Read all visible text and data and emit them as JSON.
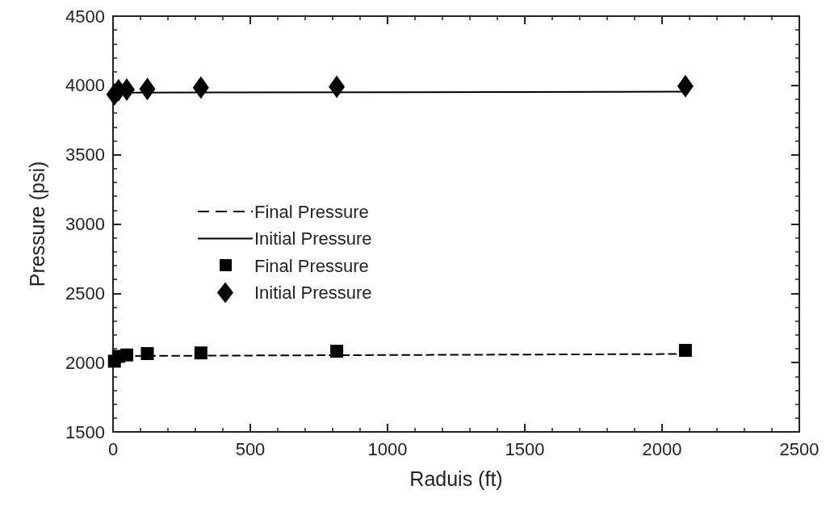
{
  "chart_data": {
    "type": "scatter",
    "xlabel": "Raduis (ft)",
    "ylabel": "Pressure (psi)",
    "xlim": [
      0,
      2500
    ],
    "xticks": [
      0,
      500,
      1000,
      1500,
      2000,
      2500
    ],
    "ylim": [
      1500,
      4500
    ],
    "yticks": [
      1500,
      2000,
      2500,
      3000,
      3500,
      4000,
      4500
    ],
    "grid": false,
    "legend": "left",
    "series": [
      {
        "name": "Final Pressure",
        "type": "line",
        "color": "#000000",
        "line_style": "dashed",
        "marker": "none",
        "x": [
          0,
          20,
          50,
          2085
        ],
        "values": [
          2010,
          2040,
          2048,
          2062
        ]
      },
      {
        "name": "Initial Pressure",
        "type": "line",
        "color": "#000000",
        "line_style": "solid",
        "marker": "none",
        "x": [
          0,
          50,
          2085
        ],
        "values": [
          3940,
          3948,
          3955
        ]
      },
      {
        "name": "Final Pressure",
        "color": "#000000",
        "marker": "square",
        "x": [
          5,
          20,
          50,
          125,
          320,
          815,
          2085
        ],
        "values": [
          2010,
          2045,
          2055,
          2065,
          2070,
          2082,
          2088
        ]
      },
      {
        "name": "Initial Pressure",
        "color": "#000000",
        "marker": "diamond",
        "x": [
          5,
          20,
          50,
          125,
          320,
          815,
          2085
        ],
        "values": [
          3935,
          3965,
          3970,
          3975,
          3985,
          3990,
          3995
        ]
      }
    ]
  }
}
